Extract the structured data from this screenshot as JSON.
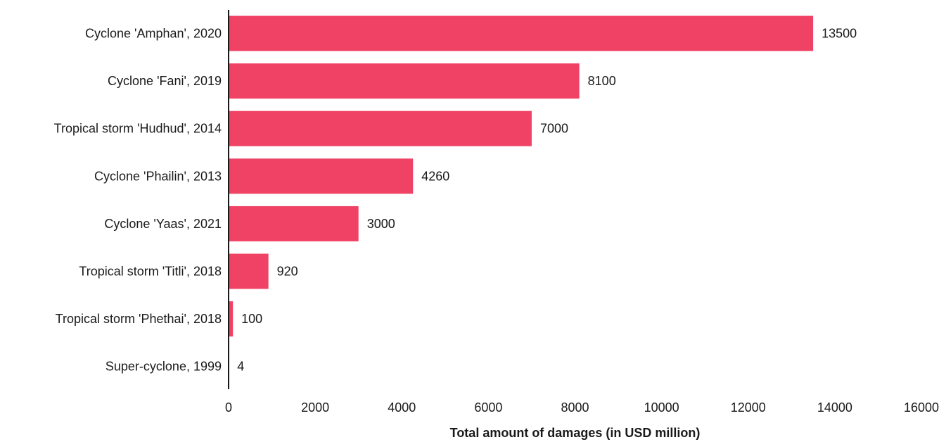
{
  "chart_data": {
    "type": "bar",
    "orientation": "horizontal",
    "title": "",
    "xlabel": "Total amount of damages (in USD million)",
    "ylabel": "",
    "categories": [
      "Cyclone 'Amphan', 2020",
      "Cyclone 'Fani', 2019",
      "Tropical storm 'Hudhud', 2014",
      "Cyclone 'Phailin', 2013",
      "Cyclone 'Yaas', 2021",
      "Tropical storm 'Titli', 2018",
      "Tropical storm 'Phethai', 2018",
      "Super-cyclone, 1999"
    ],
    "values": [
      13500,
      8100,
      7000,
      4260,
      3000,
      920,
      100,
      4
    ],
    "value_labels": [
      "13500",
      "8100",
      "7000",
      "4260",
      "3000",
      "920",
      "100",
      "4"
    ],
    "xlim": [
      0,
      16000
    ],
    "xticks": [
      0,
      2000,
      4000,
      6000,
      8000,
      10000,
      12000,
      14000,
      16000
    ],
    "xtick_labels": [
      "0",
      "2000",
      "4000",
      "6000",
      "8000",
      "10000",
      "12000",
      "14000",
      "16000"
    ],
    "grid": false,
    "legend": "none",
    "bar_color": "#f04264",
    "axis_color": "#1a1a1a"
  }
}
